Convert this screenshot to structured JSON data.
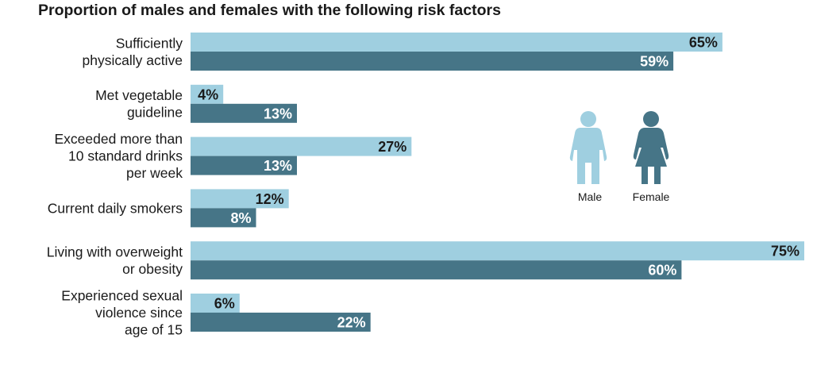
{
  "chart_data": {
    "type": "bar",
    "orientation": "horizontal",
    "title": "Proportion of males and females with the following risk factors",
    "unit": "%",
    "categories": [
      [
        "Sufficiently",
        "physically active"
      ],
      [
        "Met vegetable",
        "guideline"
      ],
      [
        "Exceeded more than",
        "10 standard drinks",
        "per week"
      ],
      [
        "Current daily smokers"
      ],
      [
        "Living with overweight",
        "or obesity"
      ],
      [
        "Experienced sexual",
        "violence since",
        "age of 15"
      ]
    ],
    "series": [
      {
        "name": "Male",
        "color": "#9fcfe0",
        "label_color": "#1a1a1a",
        "values": [
          65,
          4,
          27,
          12,
          75,
          6
        ]
      },
      {
        "name": "Female",
        "color": "#467587",
        "label_color": "#ffffff",
        "values": [
          59,
          13,
          13,
          8,
          60,
          22
        ]
      }
    ],
    "xlim": [
      0,
      75
    ],
    "grid": false,
    "legend": {
      "placement": "center-right",
      "items": [
        {
          "label": "Male",
          "icon": "male-figure-icon",
          "color": "#9fcfe0"
        },
        {
          "label": "Female",
          "icon": "female-figure-icon",
          "color": "#467587"
        }
      ]
    }
  }
}
